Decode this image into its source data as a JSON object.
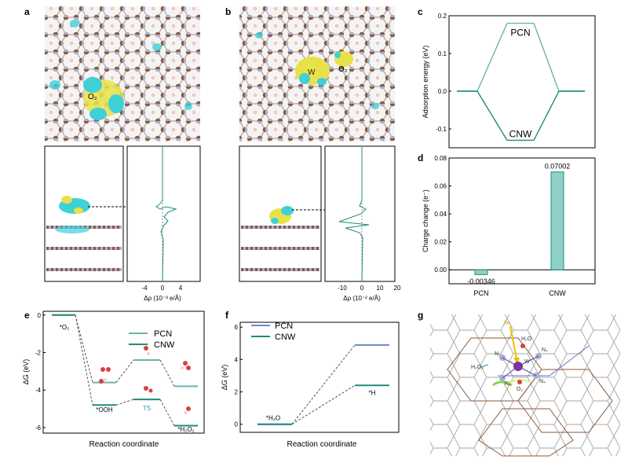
{
  "panel_labels": {
    "a": "a",
    "b": "b",
    "c": "c",
    "d": "d",
    "e": "e",
    "f": "f",
    "g": "g"
  },
  "panel_a": {
    "o2_label": "O₂",
    "xlabel": "Δρ (10⁻³ e/Å)",
    "ticks": [
      "-4",
      "0",
      "4"
    ]
  },
  "panel_b": {
    "w_label": "W",
    "o2_label": "O₂",
    "xlabel": "Δρ (10⁻² e/Å)",
    "ticks": [
      "-10",
      "0",
      "10",
      "20"
    ]
  },
  "colors": {
    "pcn": "#6cb3ae",
    "cnw": "#1e8c7c",
    "pcn_f": "#6f86c6",
    "yellow": "#e8e24a",
    "cyan": "#3fd0d8",
    "carbon": "#8b5a3c",
    "nitrogen": "#a9aed4"
  },
  "chart_data": [
    {
      "panel": "c",
      "type": "line",
      "ylabel": "Adsorption energy (eV)",
      "ylim": [
        -0.15,
        0.2
      ],
      "yticks": [
        "-0.1",
        "0.0",
        "0.1",
        "0.2"
      ],
      "series": [
        {
          "name": "PCN",
          "levels": [
            0,
            0.18,
            0
          ]
        },
        {
          "name": "CNW",
          "levels": [
            0,
            -0.13,
            0
          ]
        }
      ]
    },
    {
      "panel": "d",
      "type": "bar",
      "ylabel": "Charge change (e⁻)",
      "categories": [
        "PCN",
        "CNW"
      ],
      "values": [
        -0.00346,
        0.07002
      ],
      "value_labels": [
        "-0.00346",
        "0.07002"
      ],
      "ylim": [
        -0.01,
        0.08
      ],
      "yticks": [
        "0.00",
        "0.02",
        "0.04",
        "0.06",
        "0.08"
      ]
    },
    {
      "panel": "e",
      "type": "line",
      "ylabel": "ΔG (eV)",
      "xlabel": "Reaction coordinate",
      "ylim": [
        -6.3,
        0.2
      ],
      "yticks": [
        "0",
        "-2",
        "-4",
        "-6"
      ],
      "states": [
        "*O₂",
        "*OOH",
        "TS",
        "*H₂O₂"
      ],
      "series": [
        {
          "name": "PCN",
          "levels": [
            0,
            -3.6,
            -2.4,
            -3.8
          ]
        },
        {
          "name": "CNW",
          "levels": [
            0,
            -4.8,
            -4.5,
            -5.9
          ]
        }
      ],
      "annotations": [
        "*O₂",
        "*OOH",
        "TS",
        "*H₂O₂"
      ]
    },
    {
      "panel": "f",
      "type": "line",
      "ylabel": "ΔG (eV)",
      "xlabel": "Reaction coordinate",
      "ylim": [
        -0.5,
        6.3
      ],
      "yticks": [
        "0",
        "2",
        "4",
        "6"
      ],
      "states": [
        "*H₂O",
        "*H"
      ],
      "series": [
        {
          "name": "PCN",
          "levels": [
            0,
            4.9
          ]
        },
        {
          "name": "CNW",
          "levels": [
            0,
            2.4
          ]
        }
      ],
      "annotations": [
        "*H₂O",
        "*H"
      ]
    }
  ],
  "panel_g": {
    "hv": "hν",
    "h2o": "H₂O",
    "h2o2": "H₂O₂",
    "n1": "N₁",
    "n2": "N₂",
    "n3": "N₃",
    "n4": "N₄",
    "w": "W",
    "o2": "O₂"
  }
}
